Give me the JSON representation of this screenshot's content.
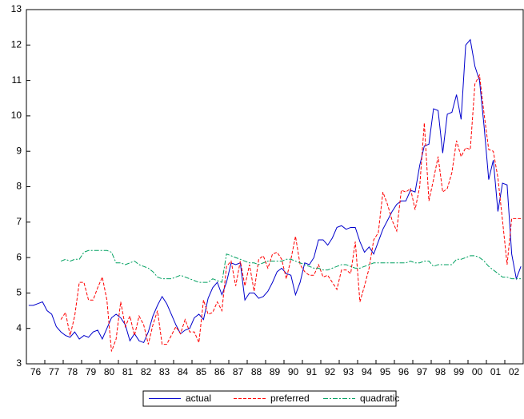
{
  "chart_data": {
    "type": "line",
    "categories": [
      "76",
      null,
      null,
      null,
      "77",
      null,
      null,
      null,
      "78",
      null,
      null,
      null,
      "79",
      null,
      null,
      null,
      "80",
      null,
      null,
      null,
      "81",
      null,
      null,
      null,
      "82",
      null,
      null,
      null,
      "83",
      null,
      null,
      null,
      "84",
      null,
      null,
      null,
      "85",
      null,
      null,
      null,
      "86",
      null,
      null,
      null,
      "87",
      null,
      null,
      null,
      "88",
      null,
      null,
      null,
      "89",
      null,
      null,
      null,
      "90",
      null,
      null,
      null,
      "91",
      null,
      null,
      null,
      "92",
      null,
      null,
      null,
      "93",
      null,
      null,
      null,
      "94",
      null,
      null,
      null,
      "95",
      null,
      null,
      null,
      "96",
      null,
      null,
      null,
      "97",
      null,
      null,
      null,
      "98",
      null,
      null,
      null,
      "99",
      null,
      null,
      null,
      "00",
      null,
      null,
      null,
      "01",
      null,
      null,
      null,
      "02",
      null,
      null,
      null
    ],
    "series": [
      {
        "name": "actual",
        "color": "#0000cc",
        "linestyle": "solid",
        "values": [
          4.65,
          4.65,
          4.7,
          4.75,
          4.5,
          4.4,
          4.05,
          3.9,
          3.8,
          3.75,
          3.9,
          3.7,
          3.8,
          3.75,
          3.9,
          3.95,
          3.7,
          4.0,
          4.3,
          4.4,
          4.3,
          4.1,
          3.65,
          3.85,
          3.65,
          3.6,
          3.9,
          4.35,
          4.65,
          4.9,
          4.7,
          4.4,
          4.1,
          3.85,
          3.95,
          4.0,
          4.3,
          4.4,
          4.25,
          4.85,
          5.15,
          5.3,
          4.95,
          5.3,
          5.85,
          5.8,
          5.85,
          4.8,
          5.0,
          5.0,
          4.85,
          4.9,
          5.05,
          5.3,
          5.6,
          5.7,
          5.55,
          5.5,
          4.95,
          5.3,
          5.85,
          5.8,
          6.0,
          6.5,
          6.5,
          6.35,
          6.55,
          6.85,
          6.9,
          6.8,
          6.85,
          6.85,
          6.45,
          6.15,
          6.3,
          6.1,
          6.45,
          6.8,
          7.05,
          7.3,
          7.5,
          7.6,
          7.6,
          7.9,
          7.85,
          8.6,
          9.15,
          9.2,
          10.2,
          10.15,
          8.95,
          10.05,
          10.1,
          10.6,
          9.9,
          12.0,
          12.15,
          11.4,
          11.0,
          9.7,
          8.2,
          8.75,
          7.3,
          8.1,
          8.05,
          6.1,
          5.4,
          5.75
        ]
      },
      {
        "name": "preferred",
        "color": "#ff0000",
        "linestyle": "dashed",
        "values": [
          null,
          null,
          null,
          null,
          null,
          null,
          null,
          4.25,
          4.45,
          3.8,
          4.35,
          5.3,
          5.3,
          4.8,
          4.8,
          5.15,
          5.45,
          4.8,
          3.35,
          3.7,
          4.75,
          4.05,
          4.35,
          3.8,
          4.35,
          4.1,
          3.55,
          4.1,
          4.5,
          3.55,
          3.55,
          3.8,
          4.05,
          3.85,
          4.25,
          3.9,
          3.9,
          3.6,
          4.8,
          4.4,
          4.45,
          4.75,
          4.5,
          5.75,
          5.9,
          5.2,
          5.9,
          5.2,
          5.8,
          5.05,
          5.95,
          6.05,
          5.7,
          6.1,
          6.15,
          5.95,
          5.4,
          5.95,
          6.6,
          5.8,
          5.6,
          5.5,
          5.5,
          5.8,
          5.45,
          5.5,
          5.3,
          5.1,
          5.65,
          5.65,
          5.55,
          6.45,
          4.75,
          5.2,
          5.7,
          6.5,
          6.7,
          7.85,
          7.5,
          7.05,
          6.75,
          7.9,
          7.85,
          7.95,
          7.35,
          8.0,
          9.8,
          7.6,
          8.2,
          8.85,
          7.85,
          7.95,
          8.4,
          9.3,
          8.85,
          9.1,
          9.05,
          10.9,
          11.15,
          10.05,
          9.05,
          9.0,
          8.25,
          7.05,
          5.8,
          7.1,
          7.1,
          7.1
        ]
      },
      {
        "name": "quadratic",
        "color": "#00a060",
        "linestyle": "dashdot",
        "values": [
          null,
          null,
          null,
          null,
          null,
          null,
          null,
          5.9,
          5.95,
          5.9,
          5.95,
          5.95,
          6.15,
          6.2,
          6.2,
          6.2,
          6.2,
          6.2,
          6.15,
          5.85,
          5.85,
          5.8,
          5.85,
          5.9,
          5.8,
          5.75,
          5.7,
          5.6,
          5.45,
          5.4,
          5.4,
          5.4,
          5.45,
          5.5,
          5.45,
          5.4,
          5.35,
          5.3,
          5.3,
          5.3,
          5.4,
          5.35,
          5.3,
          6.1,
          6.05,
          6.0,
          5.95,
          5.9,
          5.85,
          5.85,
          5.8,
          5.85,
          5.9,
          5.9,
          5.9,
          5.9,
          5.95,
          5.95,
          5.9,
          5.85,
          5.8,
          5.75,
          5.7,
          5.7,
          5.65,
          5.65,
          5.7,
          5.75,
          5.8,
          5.8,
          5.75,
          5.7,
          5.7,
          5.75,
          5.8,
          5.85,
          5.85,
          5.85,
          5.85,
          5.85,
          5.85,
          5.85,
          5.85,
          5.9,
          5.85,
          5.85,
          5.9,
          5.9,
          5.75,
          5.8,
          5.8,
          5.8,
          5.8,
          5.95,
          5.95,
          6.0,
          6.05,
          6.05,
          6.0,
          5.9,
          5.75,
          5.65,
          5.55,
          5.45,
          5.45,
          5.4,
          5.4,
          5.4
        ]
      }
    ],
    "ylim": [
      3,
      13
    ],
    "yticks": [
      3,
      4,
      5,
      6,
      7,
      8,
      9,
      10,
      11,
      12,
      13
    ],
    "grid": false,
    "legend": "bottom"
  }
}
